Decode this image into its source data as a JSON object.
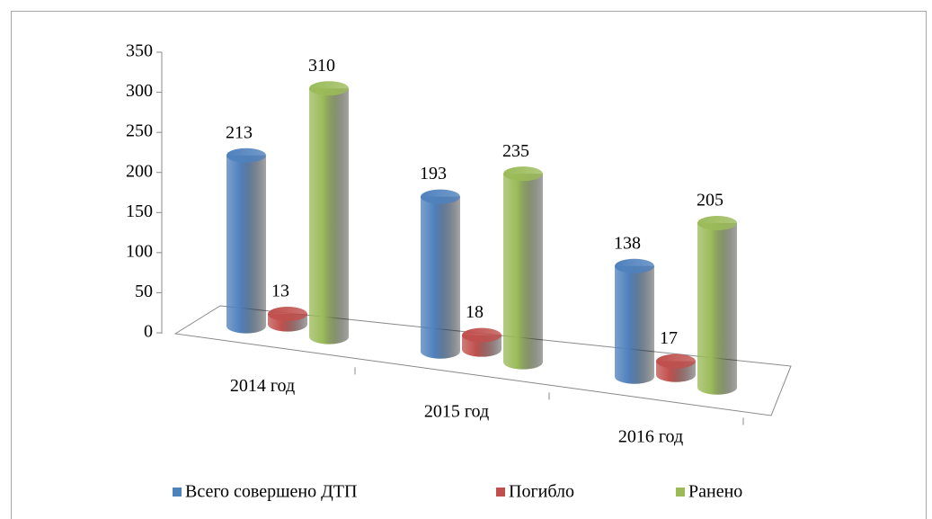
{
  "chart_data": {
    "type": "bar3d",
    "categories": [
      "2014 год",
      "2015 год",
      "2016 год"
    ],
    "series": [
      {
        "name": "Всего совершено ДТП",
        "color": "#4f81bd",
        "values": [
          213,
          193,
          138
        ]
      },
      {
        "name": "Погибло",
        "color": "#c0504d",
        "values": [
          13,
          18,
          17
        ]
      },
      {
        "name": "Ранено",
        "color": "#9bbb59",
        "values": [
          310,
          235,
          205
        ]
      }
    ],
    "ylim": [
      0,
      350
    ],
    "yticks": [
      0,
      50,
      100,
      150,
      200,
      250,
      300,
      350
    ],
    "legend": "bottom"
  }
}
